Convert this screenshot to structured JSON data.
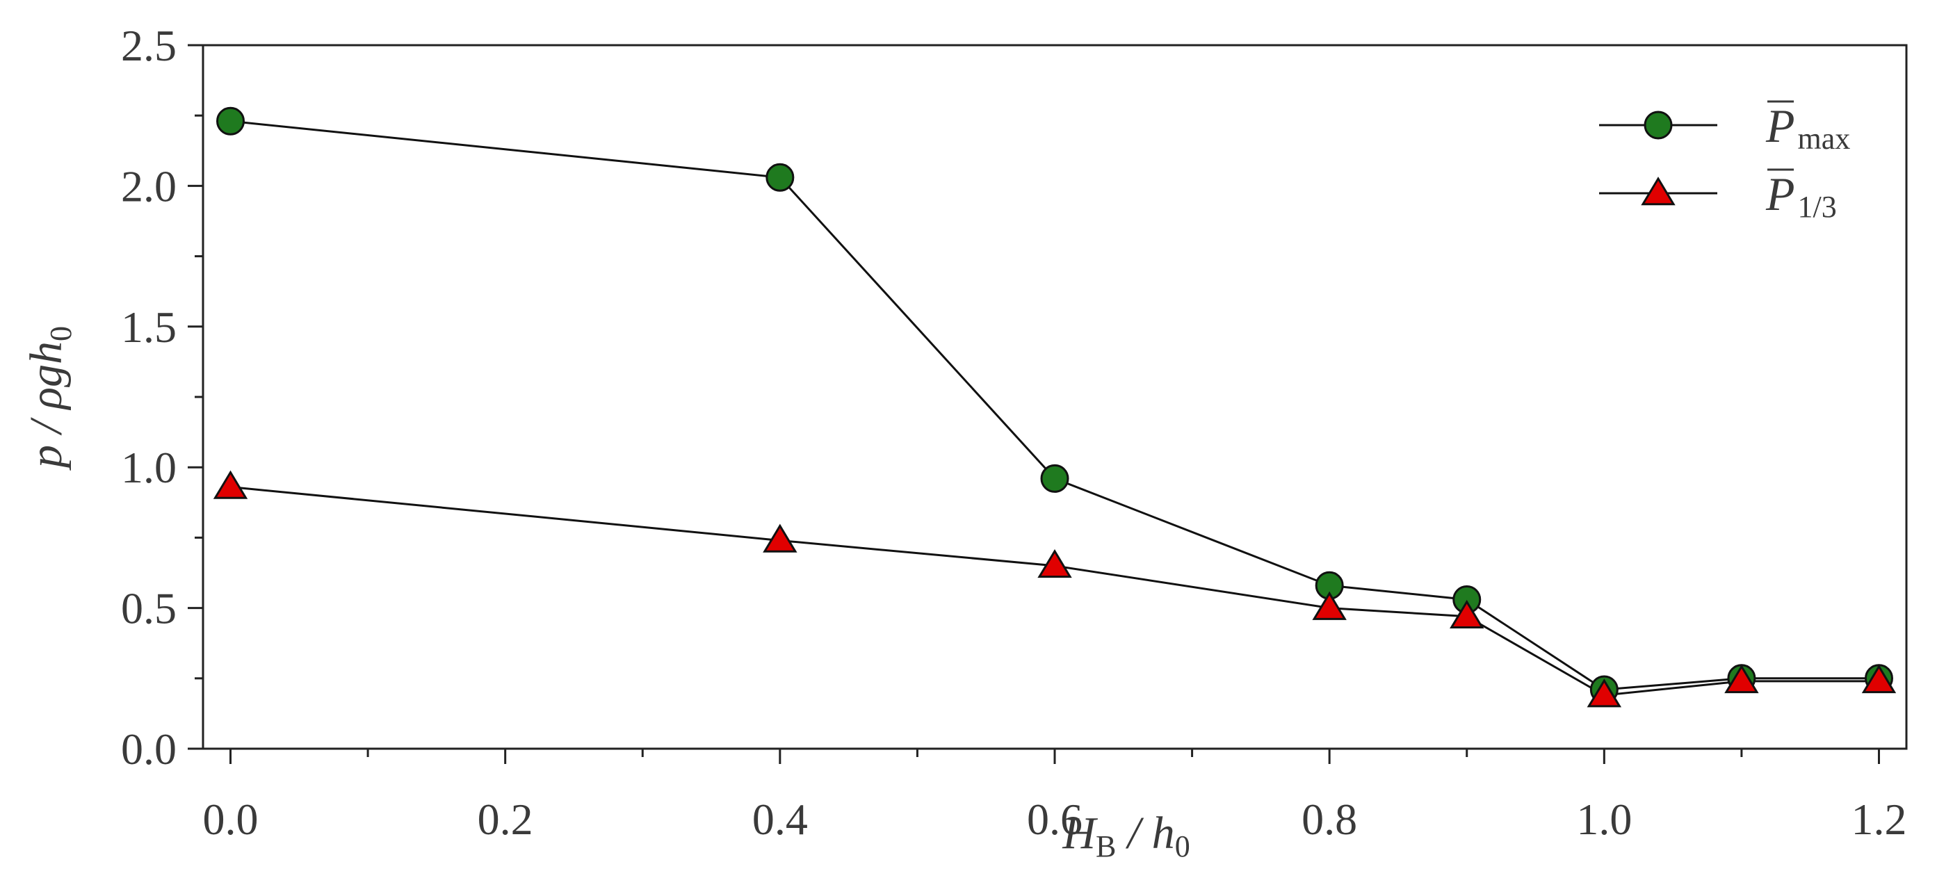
{
  "chart_data": {
    "type": "line",
    "title": "",
    "xlabel": {
      "main": "H",
      "sub": "B",
      "sep": " / h",
      "sub2": "0"
    },
    "ylabel": {
      "main": "p / ρgh",
      "sub": "0"
    },
    "xlim": [
      -0.02,
      1.22
    ],
    "ylim": [
      0.0,
      2.5
    ],
    "xticks": [
      0.0,
      0.2,
      0.4,
      0.6,
      0.8,
      1.0,
      1.2
    ],
    "xtick_labels": [
      "0.0",
      "0.2",
      "0.4",
      "0.6",
      "0.8",
      "1.0",
      "1.2"
    ],
    "yticks": [
      0.0,
      0.5,
      1.0,
      1.5,
      2.0,
      2.5
    ],
    "ytick_labels": [
      "0.0",
      "0.5",
      "1.0",
      "1.5",
      "2.0",
      "2.5"
    ],
    "grid": false,
    "legend_position": "top-right",
    "x": [
      0.0,
      0.4,
      0.6,
      0.8,
      0.9,
      1.0,
      1.1,
      1.2
    ],
    "series": [
      {
        "name": "P",
        "name_sub": "max",
        "overbar": true,
        "marker": "circle",
        "color": "#1f7a1f",
        "values": [
          2.23,
          2.03,
          0.96,
          0.58,
          0.53,
          0.21,
          0.25,
          0.25
        ]
      },
      {
        "name": "P",
        "name_sub": "1/3",
        "overbar": true,
        "marker": "triangle",
        "color": "#e00000",
        "values": [
          0.93,
          0.74,
          0.65,
          0.5,
          0.47,
          0.19,
          0.24,
          0.24
        ]
      }
    ]
  }
}
